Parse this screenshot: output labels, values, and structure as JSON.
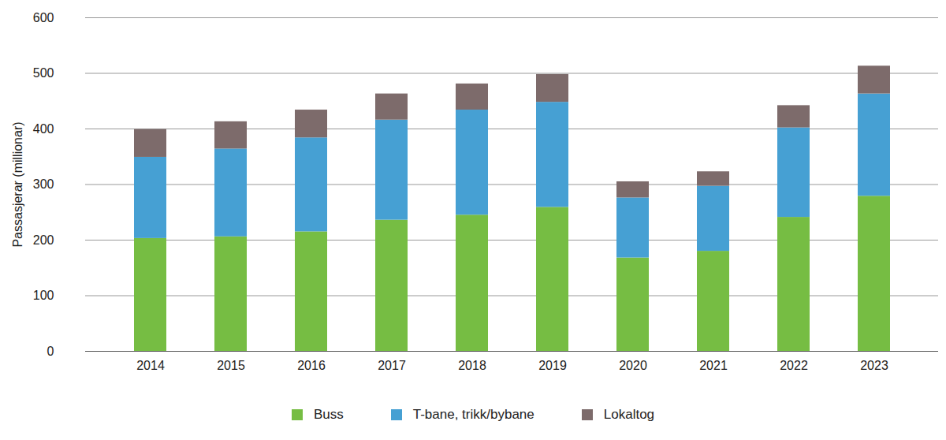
{
  "chart_data": {
    "type": "bar",
    "stacked": true,
    "grid": true,
    "y_label": "Passasjerar (millionar)",
    "categories": [
      "2014",
      "2015",
      "2016",
      "2017",
      "2018",
      "2019",
      "2020",
      "2021",
      "2022",
      "2023"
    ],
    "series": [
      {
        "name": "Buss",
        "color": "#76bd43",
        "values": [
          203,
          206,
          215,
          236,
          245,
          259,
          168,
          180,
          241,
          279
        ]
      },
      {
        "name": "T-bane, trikk/bybane",
        "color": "#46a0d3",
        "values": [
          146,
          158,
          169,
          180,
          189,
          189,
          108,
          117,
          161,
          184
        ]
      },
      {
        "name": "Lokaltog",
        "color": "#7d6b6b",
        "values": [
          50,
          49,
          50,
          47,
          47,
          50,
          29,
          26,
          40,
          50
        ]
      }
    ],
    "ylim": [
      0,
      600
    ],
    "yticks": [
      0,
      100,
      200,
      300,
      400,
      500,
      600
    ],
    "legend": "bottom"
  }
}
